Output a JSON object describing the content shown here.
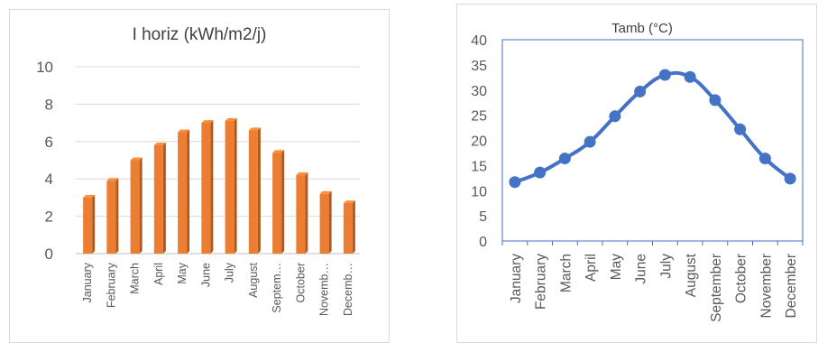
{
  "chart_data": [
    {
      "type": "bar",
      "title": "I horiz (kWh/m2/j)",
      "xlabel": "",
      "ylabel": "",
      "ylim": [
        0,
        10
      ],
      "yticks": [
        "0",
        "2",
        "4",
        "6",
        "8",
        "10"
      ],
      "grid": true,
      "legend": "none",
      "color": "#ED7D31",
      "categories": [
        "January",
        "February",
        "March",
        "April",
        "May",
        "June",
        "July",
        "August",
        "September",
        "October",
        "November",
        "December"
      ],
      "category_labels": [
        "January",
        "February",
        "March",
        "April",
        "May",
        "June",
        "July",
        "August",
        "Septem…",
        "October",
        "Novemb…",
        "Decemb…"
      ],
      "values": [
        3.0,
        3.9,
        5.0,
        5.8,
        6.5,
        7.0,
        7.1,
        6.6,
        5.4,
        4.2,
        3.2,
        2.7
      ]
    },
    {
      "type": "line",
      "title": "Tamb (°C)",
      "xlabel": "",
      "ylabel": "",
      "ylim": [
        0,
        40
      ],
      "yticks": [
        "0",
        "5",
        "10",
        "15",
        "20",
        "25",
        "30",
        "35",
        "40"
      ],
      "grid": false,
      "legend": "none",
      "color": "#4472C4",
      "categories": [
        "January",
        "February",
        "March",
        "April",
        "May",
        "June",
        "July",
        "August",
        "September",
        "October",
        "November",
        "December"
      ],
      "category_labels": [
        "January",
        "February",
        "March",
        "April",
        "May",
        "June",
        "July",
        "August",
        "September",
        "October",
        "November",
        "December"
      ],
      "values": [
        11.7,
        13.6,
        16.4,
        19.7,
        24.8,
        29.7,
        33.0,
        32.6,
        28.0,
        22.2,
        16.4,
        12.4
      ]
    }
  ]
}
